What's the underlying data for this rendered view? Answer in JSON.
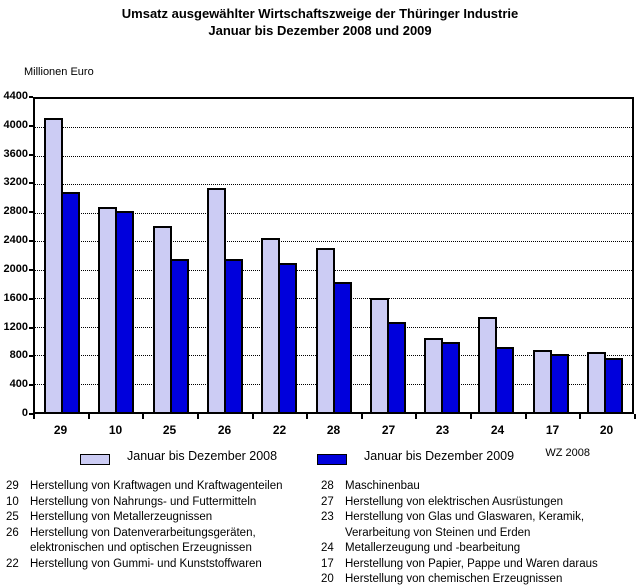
{
  "title": {
    "line1": "Umsatz ausgewählter Wirtschaftszweige der Thüringer Industrie",
    "line2": "Januar bis Dezember 2008 und 2009"
  },
  "y_axis": {
    "unit_label": "Millionen Euro"
  },
  "footnote": "WZ 2008",
  "colors": {
    "bar_2008": "#ccccf4",
    "bar_2009": "#0000dc",
    "axis": "#000000",
    "background": "#ffffff"
  },
  "legend": {
    "items": [
      {
        "label": "Januar bis Dezember 2008",
        "series": "2008"
      },
      {
        "label": "Januar bis Dezember 2009",
        "series": "2009"
      }
    ]
  },
  "chart_data": {
    "type": "bar",
    "title": "Umsatz ausgewählter Wirtschaftszweige der Thüringer Industrie, Januar bis Dezember 2008 und 2009",
    "xlabel": "",
    "ylabel": "Millionen Euro",
    "ylim": [
      0,
      4400
    ],
    "ytick_step": 400,
    "grid": "horizontal-dotted",
    "legend_position": "bottom",
    "categories": [
      "29",
      "10",
      "25",
      "26",
      "22",
      "28",
      "27",
      "23",
      "24",
      "17",
      "20"
    ],
    "series": [
      {
        "name": "Januar bis Dezember 2008",
        "color": "#ccccf4",
        "values": [
          4130,
          2880,
          2620,
          3150,
          2440,
          2300,
          1600,
          1040,
          1340,
          870,
          850
        ]
      },
      {
        "name": "Januar bis Dezember 2009",
        "color": "#0000dc",
        "values": [
          3090,
          2830,
          2150,
          2150,
          2100,
          1830,
          1260,
          980,
          920,
          810,
          760
        ]
      }
    ]
  },
  "sector_legend": {
    "left": [
      {
        "code": "29",
        "lines": [
          "Herstellung von Kraftwagen und Kraftwagenteilen"
        ]
      },
      {
        "code": "10",
        "lines": [
          "Herstellung von Nahrungs- und Futtermitteln"
        ]
      },
      {
        "code": "25",
        "lines": [
          "Herstellung von Metallerzeugnissen"
        ]
      },
      {
        "code": "26",
        "lines": [
          "Herstellung von Datenverarbeitungsgeräten,",
          "elektronischen und optischen Erzeugnissen"
        ]
      },
      {
        "code": "22",
        "lines": [
          "Herstellung von Gummi- und Kunststoffwaren"
        ]
      }
    ],
    "right": [
      {
        "code": "28",
        "lines": [
          "Maschinenbau"
        ]
      },
      {
        "code": "27",
        "lines": [
          "Herstellung von elektrischen Ausrüstungen"
        ]
      },
      {
        "code": "23",
        "lines": [
          "Herstellung von Glas und Glaswaren, Keramik,",
          "Verarbeitung von Steinen und Erden"
        ]
      },
      {
        "code": "24",
        "lines": [
          "Metallerzeugung und -bearbeitung"
        ]
      },
      {
        "code": "17",
        "lines": [
          "Herstellung von Papier, Pappe und Waren daraus"
        ]
      },
      {
        "code": "20",
        "lines": [
          "Herstellung von chemischen Erzeugnissen"
        ]
      }
    ]
  }
}
